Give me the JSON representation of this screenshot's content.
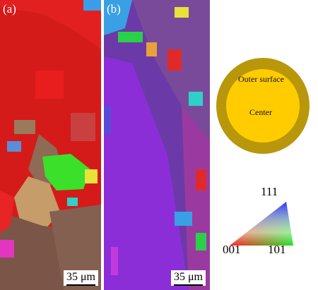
{
  "panels": [
    {
      "label": "(a)",
      "scale_bar": "35 μm"
    },
    {
      "label": "(b)",
      "scale_bar": "35 μm"
    }
  ],
  "inset": {
    "outer_label": "Outer surface",
    "center_label": "Center",
    "ring_color": "#b8970a",
    "core_color": "#ffcc00"
  },
  "ipf_key": {
    "top": "111",
    "left": "001",
    "right": "101"
  },
  "colors": {
    "panel_a_dominant": "#e01818",
    "panel_a_secondary": "#7b5a4c",
    "panel_a_green": "#3ce82c",
    "panel_b_dominant": "#8a2fd6"
  }
}
